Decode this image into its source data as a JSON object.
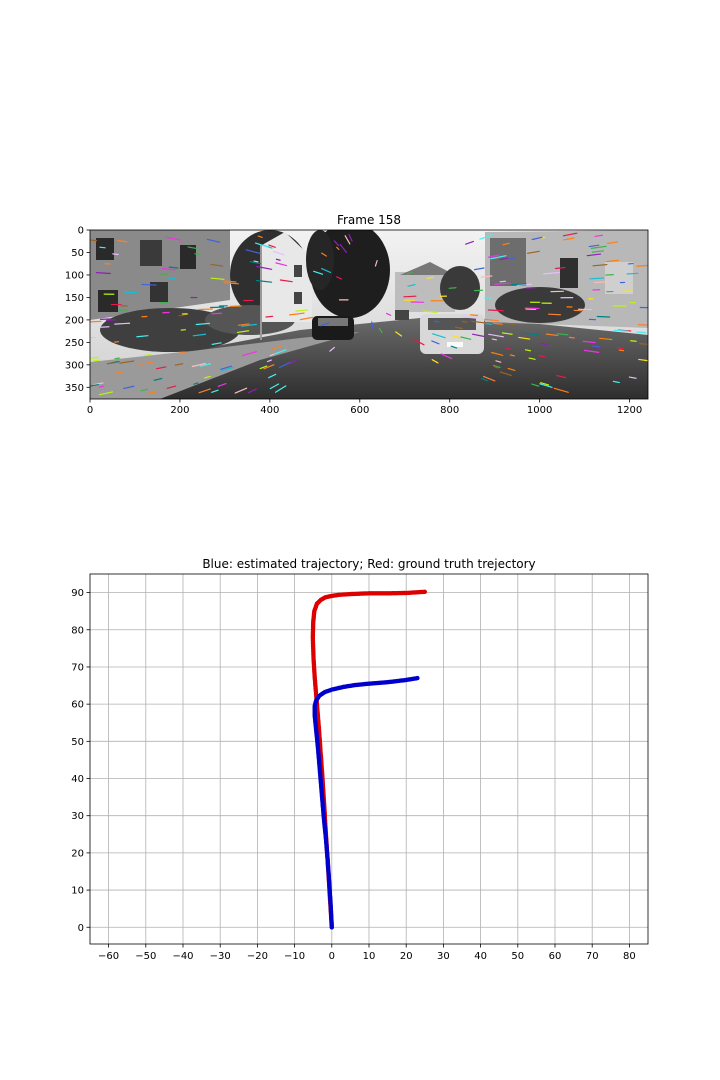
{
  "figure": {
    "colors": {
      "estimated": "#0000cc",
      "ground_truth": "#dd0000",
      "grid": "#b0b0b0",
      "axes": "#000000"
    }
  },
  "chart_data": [
    {
      "type": "image",
      "title": "Frame 158",
      "content": "grayscale camera frame with colored optical-flow feature tracks",
      "xlim": [
        0,
        1241
      ],
      "ylim": [
        376,
        0
      ],
      "xticks": [
        0,
        200,
        400,
        600,
        800,
        1000,
        1200
      ],
      "yticks": [
        0,
        50,
        100,
        150,
        200,
        250,
        300,
        350
      ],
      "grid": false
    },
    {
      "type": "scatter",
      "title": "Blue: estimated trajectory; Red: ground truth trejectory",
      "xlabel": "",
      "ylabel": "",
      "xlim": [
        -65,
        85
      ],
      "ylim": [
        -4.5,
        95
      ],
      "xticks": [
        -60,
        -50,
        -40,
        -30,
        -20,
        -10,
        0,
        10,
        20,
        30,
        40,
        50,
        60,
        70,
        80
      ],
      "yticks": [
        0,
        10,
        20,
        30,
        40,
        50,
        60,
        70,
        80,
        90
      ],
      "grid": true,
      "legend": "none",
      "series": [
        {
          "color": "#dd0000",
          "x": [
            0,
            -0.5,
            -1.0,
            -1.5,
            -2.0,
            -2.5,
            -3.0,
            -3.5,
            -4.0,
            -4.5,
            -4.9,
            -5.1,
            -5.0,
            -4.7,
            -4.0,
            -3.0,
            -1.8,
            0,
            2,
            5,
            10,
            15,
            20,
            25
          ],
          "y": [
            0,
            8,
            16,
            24,
            32,
            40,
            47,
            54,
            60,
            66,
            72,
            78,
            82,
            85,
            87,
            88,
            88.7,
            89.1,
            89.4,
            89.6,
            89.8,
            89.8,
            89.9,
            90.2
          ]
        },
        {
          "color": "#0000cc",
          "x": [
            0,
            -0.3,
            -0.7,
            -1.1,
            -1.6,
            -2.2,
            -2.7,
            -3.2,
            -3.7,
            -4.2,
            -4.6,
            -4.6,
            -4.2,
            -3.4,
            -2.0,
            0,
            3,
            6,
            10,
            15,
            20,
            23
          ],
          "y": [
            0,
            6,
            12,
            18,
            24,
            30,
            36,
            42,
            48,
            53,
            57,
            59.5,
            61,
            62.2,
            63.2,
            63.9,
            64.6,
            65.1,
            65.5,
            65.9,
            66.5,
            67
          ]
        }
      ]
    }
  ]
}
